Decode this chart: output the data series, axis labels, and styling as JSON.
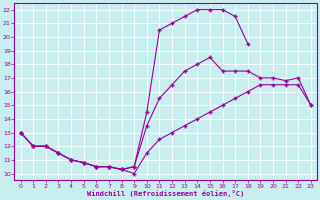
{
  "xlabel": "Windchill (Refroidissement éolien,°C)",
  "bg_color": "#c8eef0",
  "grid_color": "#ffffff",
  "line_color": "#990099",
  "xlim": [
    -0.5,
    23.5
  ],
  "ylim": [
    9.5,
    22.5
  ],
  "xticks": [
    0,
    1,
    2,
    3,
    4,
    5,
    6,
    7,
    8,
    9,
    10,
    11,
    12,
    13,
    14,
    15,
    16,
    17,
    18,
    19,
    20,
    21,
    22,
    23
  ],
  "yticks": [
    10,
    11,
    12,
    13,
    14,
    15,
    16,
    17,
    18,
    19,
    20,
    21,
    22
  ],
  "line1_x": [
    0,
    1,
    2,
    3,
    4,
    5,
    6,
    7,
    8,
    9,
    10,
    11,
    12,
    13,
    14,
    15,
    16,
    17,
    18
  ],
  "line1_y": [
    13,
    12,
    12,
    11.5,
    11.0,
    10.8,
    10.5,
    10.5,
    10.3,
    10.5,
    14.5,
    20.5,
    21.0,
    21.5,
    22.0,
    22.0,
    22.0,
    21.5,
    19.5
  ],
  "line2_x": [
    0,
    1,
    2,
    3,
    4,
    5,
    6,
    7,
    8,
    9,
    10,
    11,
    12,
    13,
    14,
    15,
    16,
    17,
    18,
    19,
    20,
    21,
    22,
    23
  ],
  "line2_y": [
    13,
    12,
    12,
    11.5,
    11.0,
    10.8,
    10.5,
    10.5,
    10.3,
    10.5,
    13.5,
    15.5,
    16.5,
    17.5,
    18.0,
    18.5,
    17.5,
    17.5,
    17.5,
    17.0,
    17.0,
    16.8,
    17.0,
    15.0
  ],
  "line3_x": [
    0,
    1,
    2,
    3,
    4,
    5,
    6,
    7,
    8,
    9,
    10,
    11,
    12,
    13,
    14,
    15,
    16,
    17,
    18,
    19,
    20,
    21,
    22,
    23
  ],
  "line3_y": [
    13,
    12,
    12,
    11.5,
    11.0,
    10.8,
    10.5,
    10.5,
    10.3,
    10.0,
    11.5,
    12.5,
    13.0,
    13.5,
    14.0,
    14.5,
    15.0,
    15.5,
    16.0,
    16.5,
    16.5,
    16.5,
    16.5,
    15.0
  ]
}
